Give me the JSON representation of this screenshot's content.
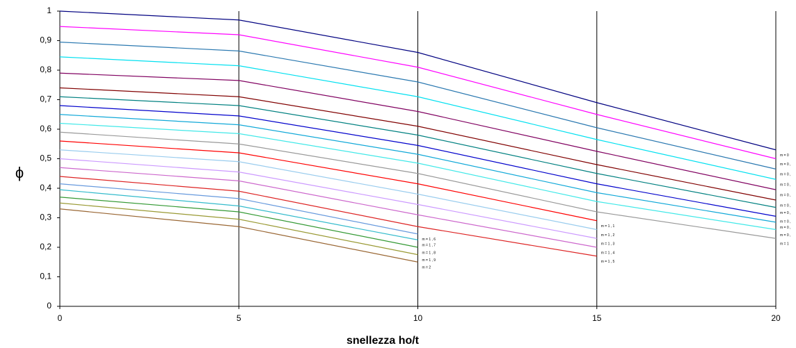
{
  "chart_data": {
    "type": "line",
    "xlabel": "snellezza ho/t",
    "ylabel": "ϕ",
    "x": [
      0,
      5,
      10,
      15,
      20
    ],
    "xlim": [
      0,
      20
    ],
    "xticks": [
      0,
      5,
      10,
      15,
      20
    ],
    "ylim": [
      0,
      1
    ],
    "yticks": [
      0,
      {
        "value": 0.1,
        "label": "0,1"
      },
      {
        "value": 0.2,
        "label": "0,2"
      },
      {
        "value": 0.3,
        "label": "0,3"
      },
      {
        "value": 0.4,
        "label": "0,4"
      },
      {
        "value": 0.5,
        "label": "0,5"
      },
      {
        "value": 0.6,
        "label": "0,6"
      },
      {
        "value": 0.7,
        "label": "0,7"
      },
      {
        "value": 0.8,
        "label": "0,8"
      },
      {
        "value": 0.9,
        "label": "0,9"
      },
      1
    ],
    "grid": "x",
    "series": [
      {
        "name": "m = 0",
        "color": "#000080",
        "values": [
          1,
          0.97,
          0.86,
          0.69,
          0.53
        ]
      },
      {
        "name": "m = 0 ,",
        "color": "#ff00ff",
        "values": [
          0.948,
          0.92,
          0.81,
          0.65,
          0.5
        ]
      },
      {
        "name": "m = 0 ,",
        "color": "#2a78b0",
        "values": [
          0.895,
          0.865,
          0.76,
          0.605,
          0.465
        ]
      },
      {
        "name": "m = 0 ,",
        "color": "#00e0f0",
        "values": [
          0.845,
          0.815,
          0.71,
          0.565,
          0.43
        ]
      },
      {
        "name": "m = 0 ,",
        "color": "#800060",
        "values": [
          0.79,
          0.765,
          0.66,
          0.525,
          0.395
        ]
      },
      {
        "name": "m = 0 ,",
        "color": "#800000",
        "values": [
          0.74,
          0.71,
          0.61,
          0.48,
          0.36
        ]
      },
      {
        "name": "m = 0 ,",
        "color": "#008080",
        "values": [
          0.71,
          0.68,
          0.58,
          0.45,
          0.335
        ]
      },
      {
        "name": "m = 0 ,",
        "color": "#0000cc",
        "values": [
          0.68,
          0.645,
          0.545,
          0.415,
          0.305
        ]
      },
      {
        "name": "m = 0 ,",
        "color": "#10a8d8",
        "values": [
          0.65,
          0.615,
          0.515,
          0.385,
          0.285
        ]
      },
      {
        "name": "m = 0 ,",
        "color": "#40e8e8",
        "values": [
          0.62,
          0.585,
          0.485,
          0.355,
          0.26
        ]
      },
      {
        "name": "m = 1",
        "color": "#999999",
        "values": [
          0.59,
          0.55,
          0.45,
          0.32,
          0.23
        ]
      },
      {
        "name": "m = 1 , 1",
        "color": "#ff0000",
        "values": [
          0.56,
          0.52,
          0.415,
          0.29,
          null
        ]
      },
      {
        "name": "m = 1 , 2",
        "color": "#99ccee",
        "values": [
          0.53,
          0.49,
          0.38,
          0.26,
          null
        ]
      },
      {
        "name": "m = 1 , 3",
        "color": "#cc99ff",
        "values": [
          0.5,
          0.455,
          0.345,
          0.23,
          null
        ]
      },
      {
        "name": "m = 1 , 4",
        "color": "#cc66cc",
        "values": [
          0.47,
          0.425,
          0.31,
          0.2,
          null
        ]
      },
      {
        "name": "m = 1 , 5",
        "color": "#dd2222",
        "values": [
          0.44,
          0.39,
          0.27,
          0.17,
          null
        ]
      },
      {
        "name": "m = 1 , 6",
        "color": "#6699dd",
        "values": [
          0.415,
          0.365,
          0.245,
          null,
          null
        ]
      },
      {
        "name": "m = 1 , 7",
        "color": "#33bbcc",
        "values": [
          0.395,
          0.34,
          0.225,
          null,
          null
        ]
      },
      {
        "name": "m = 1 , 8",
        "color": "#339933",
        "values": [
          0.37,
          0.32,
          0.2,
          null,
          null
        ]
      },
      {
        "name": "m = 1 , 9",
        "color": "#999933",
        "values": [
          0.35,
          0.295,
          0.175,
          null,
          null
        ]
      },
      {
        "name": "m = 2",
        "color": "#996633",
        "values": [
          0.33,
          0.27,
          0.15,
          null,
          null
        ]
      }
    ]
  }
}
